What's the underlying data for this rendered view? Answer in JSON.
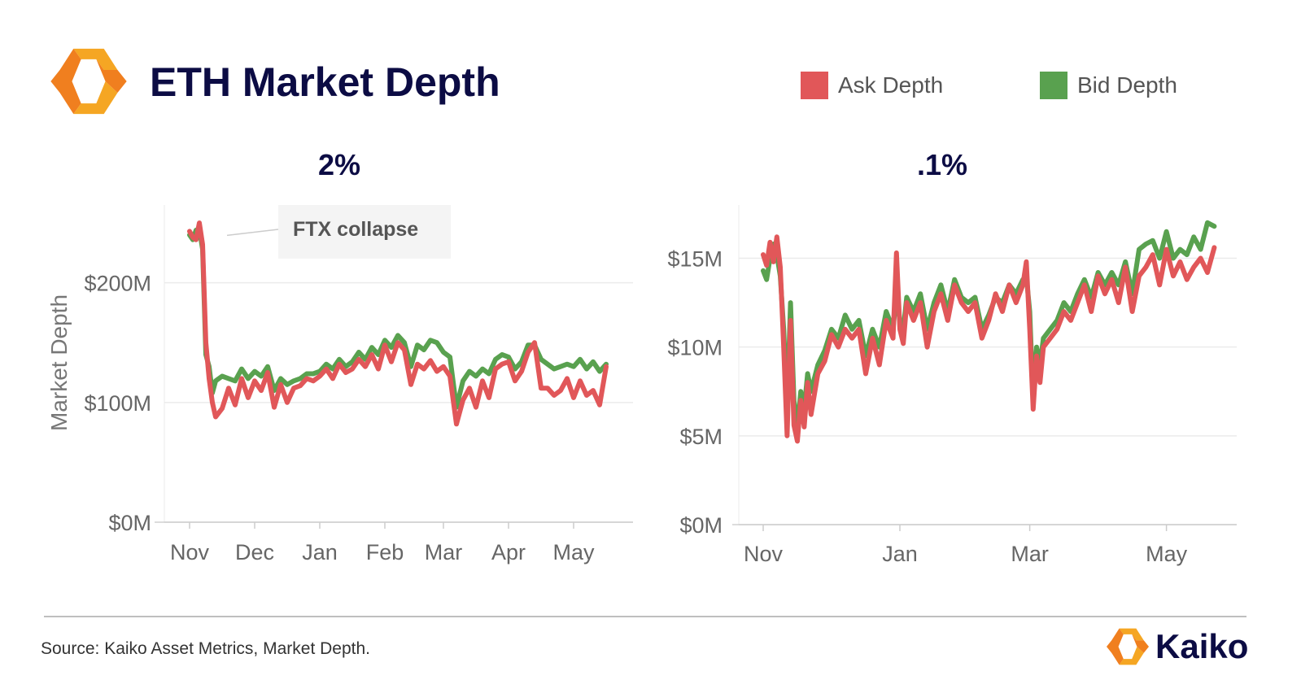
{
  "header": {
    "title": "ETH Market Depth",
    "logo_icon": "kaiko-hexagon-logo-icon",
    "logo_colors": [
      "#f5a623",
      "#f07f1f"
    ]
  },
  "legend": [
    {
      "label": "Ask Depth",
      "color": "#e15759"
    },
    {
      "label": "Bid Depth",
      "color": "#59a14f"
    }
  ],
  "chart_data": [
    {
      "type": "line",
      "title": "2%",
      "xlabel": "",
      "ylabel": "Market Depth",
      "grid": true,
      "x_range": [
        0,
        7.2
      ],
      "ylim": [
        0,
        265
      ],
      "yticks": [
        {
          "value": 0,
          "label": "$0M"
        },
        {
          "value": 100,
          "label": "$100M"
        },
        {
          "value": 200,
          "label": "$200M"
        }
      ],
      "xticks": [
        {
          "value": 0,
          "label": "Nov"
        },
        {
          "value": 1,
          "label": "Dec"
        },
        {
          "value": 2,
          "label": "Jan"
        },
        {
          "value": 3,
          "label": "Feb"
        },
        {
          "value": 3.9,
          "label": "Mar"
        },
        {
          "value": 4.9,
          "label": "Apr"
        },
        {
          "value": 5.9,
          "label": "May"
        }
      ],
      "annotations": [
        {
          "text": "FTX collapse",
          "x": 0.1,
          "y": 243
        }
      ],
      "series": [
        {
          "name": "Ask Depth",
          "x": [
            0,
            0.05,
            0.1,
            0.15,
            0.2,
            0.25,
            0.3,
            0.35,
            0.4,
            0.5,
            0.6,
            0.7,
            0.8,
            0.9,
            1,
            1.1,
            1.2,
            1.3,
            1.4,
            1.5,
            1.6,
            1.7,
            1.8,
            1.9,
            2,
            2.1,
            2.2,
            2.3,
            2.4,
            2.5,
            2.6,
            2.7,
            2.8,
            2.9,
            3,
            3.1,
            3.2,
            3.3,
            3.4,
            3.5,
            3.6,
            3.7,
            3.8,
            3.9,
            4,
            4.1,
            4.2,
            4.3,
            4.4,
            4.5,
            4.6,
            4.7,
            4.8,
            4.9,
            5,
            5.1,
            5.2,
            5.3,
            5.4,
            5.5,
            5.6,
            5.7,
            5.8,
            5.9,
            6,
            6.1,
            6.2,
            6.3,
            6.4
          ],
          "values": [
            243,
            238,
            236,
            250,
            232,
            150,
            120,
            100,
            88,
            95,
            112,
            98,
            120,
            104,
            118,
            110,
            125,
            96,
            115,
            100,
            112,
            114,
            120,
            118,
            122,
            128,
            120,
            132,
            125,
            128,
            136,
            130,
            140,
            128,
            148,
            134,
            150,
            144,
            115,
            132,
            128,
            135,
            126,
            130,
            122,
            82,
            102,
            112,
            96,
            118,
            104,
            128,
            132,
            134,
            118,
            126,
            142,
            150,
            112,
            112,
            106,
            110,
            120,
            104,
            118,
            106,
            110,
            98,
            130
          ]
        },
        {
          "name": "Bid Depth",
          "x": [
            0,
            0.05,
            0.1,
            0.15,
            0.2,
            0.25,
            0.3,
            0.35,
            0.4,
            0.5,
            0.6,
            0.7,
            0.8,
            0.9,
            1,
            1.1,
            1.2,
            1.3,
            1.4,
            1.5,
            1.6,
            1.7,
            1.8,
            1.9,
            2,
            2.1,
            2.2,
            2.3,
            2.4,
            2.5,
            2.6,
            2.7,
            2.8,
            2.9,
            3,
            3.1,
            3.2,
            3.3,
            3.4,
            3.5,
            3.6,
            3.7,
            3.8,
            3.9,
            4,
            4.1,
            4.2,
            4.3,
            4.4,
            4.5,
            4.6,
            4.7,
            4.8,
            4.9,
            5,
            5.1,
            5.2,
            5.3,
            5.4,
            5.5,
            5.6,
            5.7,
            5.8,
            5.9,
            6,
            6.1,
            6.2,
            6.3,
            6.4
          ],
          "values": [
            240,
            236,
            244,
            245,
            228,
            140,
            130,
            108,
            118,
            122,
            120,
            118,
            128,
            120,
            126,
            122,
            130,
            110,
            120,
            115,
            118,
            120,
            124,
            124,
            126,
            132,
            128,
            136,
            130,
            134,
            142,
            136,
            146,
            140,
            152,
            146,
            156,
            150,
            130,
            148,
            144,
            152,
            150,
            142,
            138,
            96,
            118,
            126,
            122,
            128,
            124,
            136,
            140,
            138,
            128,
            134,
            148,
            148,
            136,
            132,
            128,
            130,
            132,
            130,
            136,
            128,
            134,
            126,
            132
          ]
        }
      ]
    },
    {
      "type": "line",
      "title": ".1%",
      "xlabel": "",
      "ylabel": "",
      "grid": true,
      "x_range": [
        0,
        6.9
      ],
      "ylim": [
        0,
        18
      ],
      "yticks": [
        {
          "value": 0,
          "label": "$0M"
        },
        {
          "value": 5,
          "label": "$5M"
        },
        {
          "value": 10,
          "label": "$10M"
        },
        {
          "value": 15,
          "label": "$15M"
        }
      ],
      "xticks": [
        {
          "value": 0,
          "label": "Nov"
        },
        {
          "value": 2,
          "label": "Jan"
        },
        {
          "value": 3.9,
          "label": "Mar"
        },
        {
          "value": 5.9,
          "label": "May"
        }
      ],
      "series": [
        {
          "name": "Ask Depth",
          "x": [
            0,
            0.05,
            0.1,
            0.15,
            0.2,
            0.25,
            0.3,
            0.35,
            0.4,
            0.45,
            0.5,
            0.55,
            0.6,
            0.65,
            0.7,
            0.8,
            0.9,
            1,
            1.1,
            1.2,
            1.3,
            1.4,
            1.5,
            1.6,
            1.7,
            1.8,
            1.9,
            1.95,
            2,
            2.05,
            2.1,
            2.2,
            2.3,
            2.4,
            2.5,
            2.6,
            2.7,
            2.8,
            2.9,
            3,
            3.1,
            3.2,
            3.3,
            3.4,
            3.5,
            3.6,
            3.7,
            3.8,
            3.85,
            3.9,
            3.95,
            4,
            4.05,
            4.1,
            4.2,
            4.3,
            4.4,
            4.5,
            4.6,
            4.7,
            4.8,
            4.9,
            5,
            5.1,
            5.2,
            5.3,
            5.4,
            5.5,
            5.6,
            5.7,
            5.8,
            5.9,
            6,
            6.1,
            6.2,
            6.3,
            6.4,
            6.5,
            6.6
          ],
          "values": [
            15.2,
            14.6,
            15.9,
            14.8,
            16.2,
            14.5,
            10.0,
            5.0,
            11.5,
            5.6,
            4.7,
            7.0,
            5.5,
            8.0,
            6.2,
            8.5,
            9.2,
            10.7,
            10.0,
            11.0,
            10.5,
            11.0,
            8.5,
            10.5,
            9.0,
            11.5,
            10.5,
            15.3,
            11.0,
            10.2,
            12.5,
            11.5,
            12.5,
            10.0,
            12.0,
            13.0,
            11.5,
            13.5,
            12.5,
            12.0,
            12.5,
            10.5,
            11.5,
            13.0,
            12.0,
            13.5,
            12.5,
            13.5,
            14.8,
            11.0,
            6.5,
            9.5,
            8.0,
            10.0,
            10.5,
            11.0,
            12.0,
            11.5,
            12.5,
            13.5,
            12.0,
            14.0,
            13.0,
            13.8,
            12.5,
            14.5,
            12.0,
            14.0,
            14.5,
            15.2,
            13.5,
            15.5,
            14.0,
            14.8,
            13.8,
            14.5,
            15.0,
            14.2,
            15.6
          ]
        },
        {
          "name": "Bid Depth",
          "x": [
            0,
            0.05,
            0.1,
            0.15,
            0.2,
            0.25,
            0.3,
            0.35,
            0.4,
            0.45,
            0.5,
            0.55,
            0.6,
            0.65,
            0.7,
            0.8,
            0.9,
            1,
            1.1,
            1.2,
            1.3,
            1.4,
            1.5,
            1.6,
            1.7,
            1.8,
            1.9,
            1.95,
            2,
            2.05,
            2.1,
            2.2,
            2.3,
            2.4,
            2.5,
            2.6,
            2.7,
            2.8,
            2.9,
            3,
            3.1,
            3.2,
            3.3,
            3.4,
            3.5,
            3.6,
            3.7,
            3.8,
            3.85,
            3.9,
            3.95,
            4,
            4.05,
            4.1,
            4.2,
            4.3,
            4.4,
            4.5,
            4.6,
            4.7,
            4.8,
            4.9,
            5,
            5.1,
            5.2,
            5.3,
            5.4,
            5.5,
            5.6,
            5.7,
            5.8,
            5.9,
            6,
            6.1,
            6.2,
            6.3,
            6.4,
            6.5,
            6.6
          ],
          "values": [
            14.3,
            13.8,
            15.0,
            15.8,
            15.2,
            14.0,
            11.0,
            6.5,
            12.5,
            7.0,
            5.5,
            7.5,
            6.5,
            8.5,
            7.5,
            9.0,
            9.8,
            11.0,
            10.5,
            11.8,
            11.0,
            11.5,
            9.5,
            11.0,
            10.0,
            12.0,
            11.0,
            13.0,
            11.5,
            11.0,
            12.8,
            12.0,
            13.0,
            11.0,
            12.5,
            13.5,
            12.0,
            13.8,
            12.8,
            12.5,
            12.8,
            11.0,
            11.8,
            12.8,
            12.5,
            13.5,
            13.0,
            13.8,
            14.0,
            12.0,
            7.0,
            10.0,
            9.0,
            10.5,
            11.0,
            11.5,
            12.5,
            12.0,
            13.0,
            13.8,
            12.8,
            14.2,
            13.5,
            14.2,
            13.5,
            14.8,
            13.0,
            15.5,
            15.8,
            16.0,
            15.0,
            16.5,
            15.0,
            15.5,
            15.2,
            16.2,
            15.5,
            17.0,
            16.8
          ]
        }
      ]
    }
  ],
  "footer": {
    "source": "Source: Kaiko Asset Metrics, Market Depth.",
    "brand": "Kaiko",
    "brand_icon": "kaiko-hexagon-logo-icon"
  }
}
